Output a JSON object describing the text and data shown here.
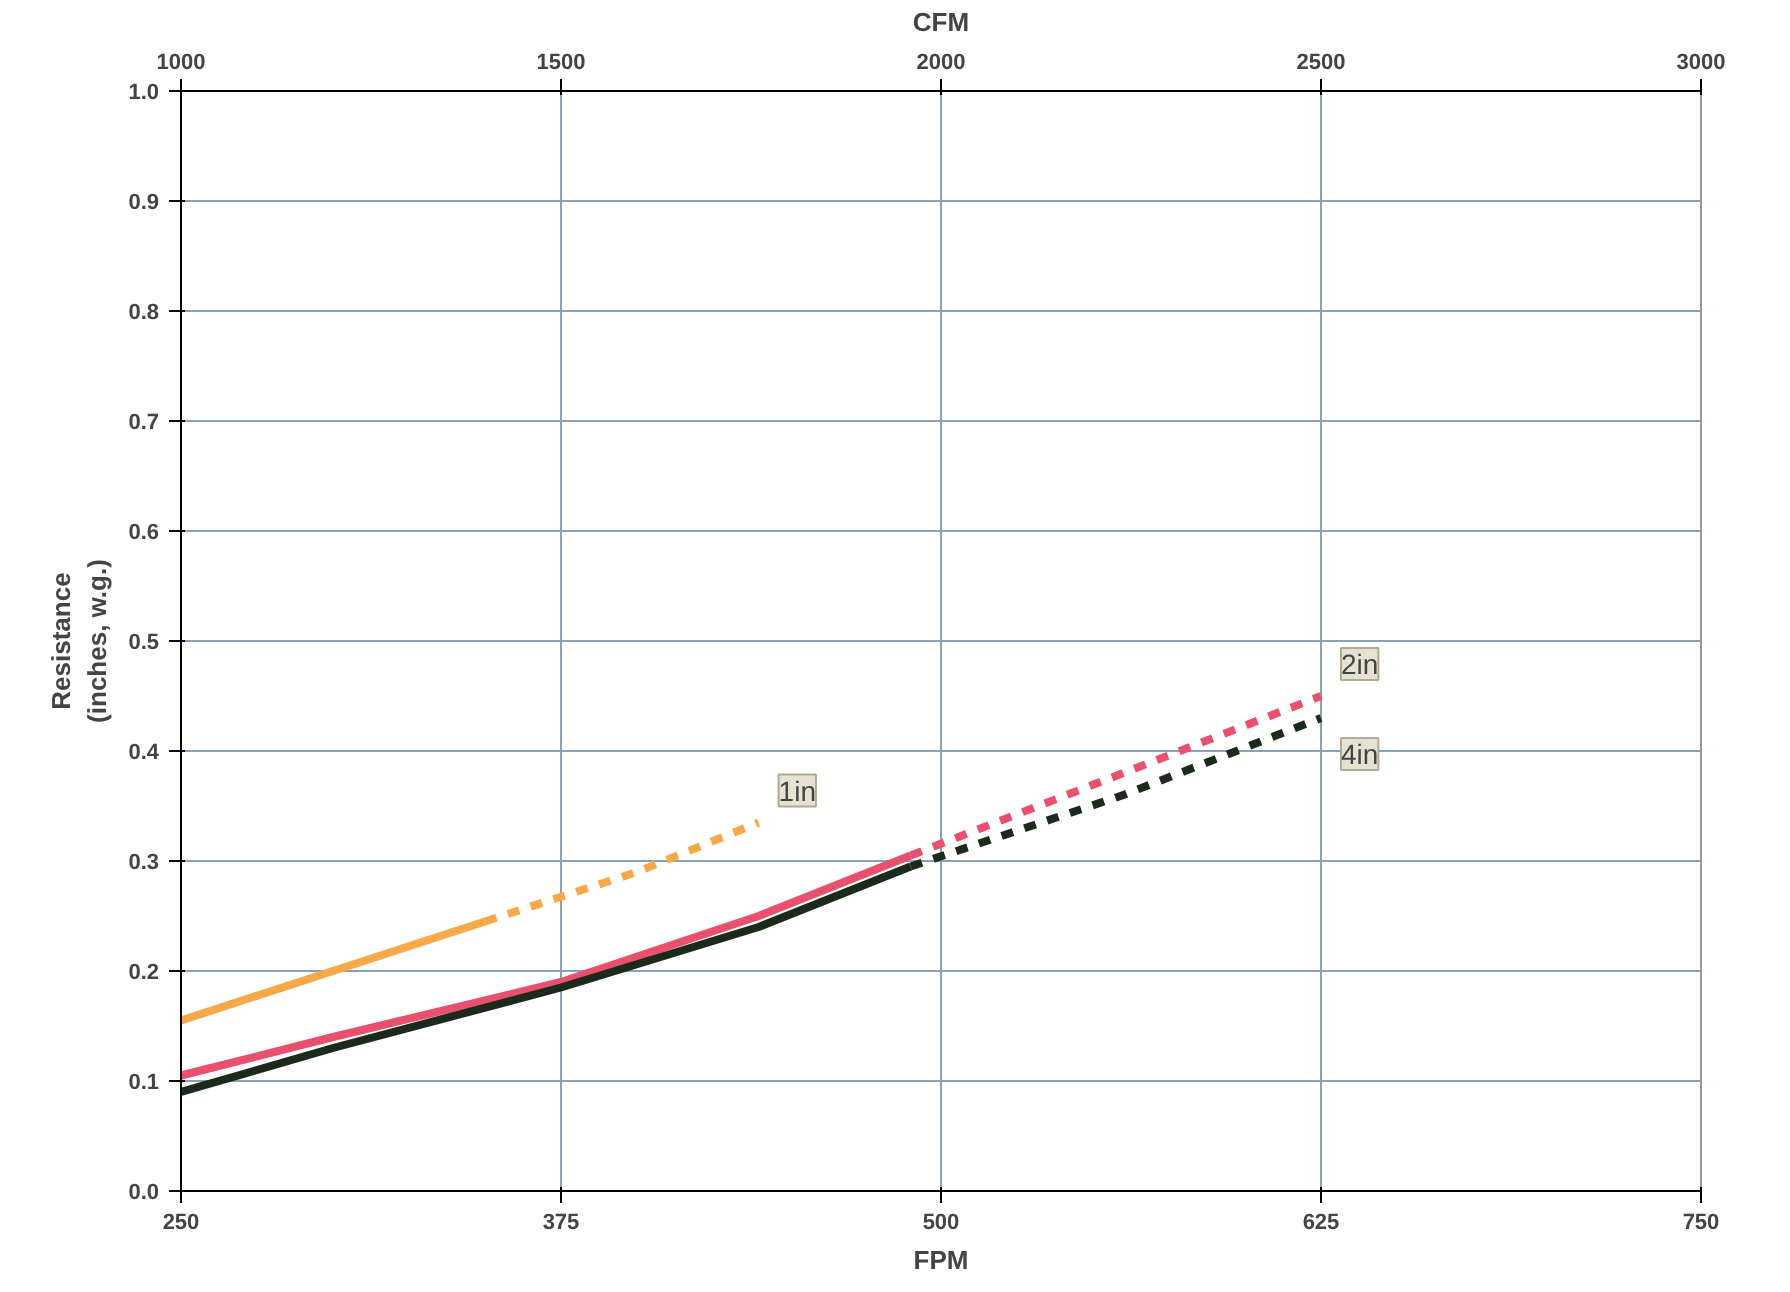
{
  "chart_data": {
    "type": "line",
    "xlabel": "FPM",
    "x2label": "CFM",
    "ylabel": "Resistance\n(inches, w.g.)",
    "xlim": [
      250,
      750
    ],
    "xticks": [
      250,
      375,
      500,
      625,
      750
    ],
    "x2lim": [
      1000,
      3000
    ],
    "x2ticks": [
      1000,
      1500,
      2000,
      2500,
      3000
    ],
    "ylim": [
      0,
      1.0
    ],
    "yticks": [
      {
        "value": 0,
        "label": "0.0"
      },
      0.1,
      0.2,
      0.3,
      0.4,
      0.5,
      0.6,
      0.7,
      0.8,
      0.9,
      {
        "value": 1,
        "label": "1.0"
      }
    ],
    "grid": true,
    "marker": "none",
    "series": [
      {
        "color": "#f7a848",
        "line_style": "solid",
        "x": [
          250,
          300,
          350
        ],
        "values": [
          0.155,
          0.2,
          0.245
        ]
      },
      {
        "name": "1in",
        "color": "#f7a848",
        "line_style": "dashed",
        "x": [
          350,
          400,
          440
        ],
        "values": [
          0.245,
          0.29,
          0.335
        ]
      },
      {
        "color": "#e8506e",
        "line_style": "solid",
        "x": [
          250,
          300,
          375,
          440,
          490
        ],
        "values": [
          0.105,
          0.14,
          0.19,
          0.25,
          0.305
        ]
      },
      {
        "name": "2in",
        "color": "#e8506e",
        "line_style": "dashed",
        "x": [
          490,
          560,
          625
        ],
        "values": [
          0.305,
          0.38,
          0.45
        ]
      },
      {
        "color": "#1c2a1c",
        "line_style": "solid",
        "x": [
          250,
          300,
          375,
          440,
          490
        ],
        "values": [
          0.09,
          0.13,
          0.185,
          0.24,
          0.295
        ]
      },
      {
        "name": "4in",
        "color": "#1c2a1c",
        "line_style": "dashed",
        "x": [
          490,
          560,
          625
        ],
        "values": [
          0.295,
          0.36,
          0.43
        ]
      }
    ]
  }
}
